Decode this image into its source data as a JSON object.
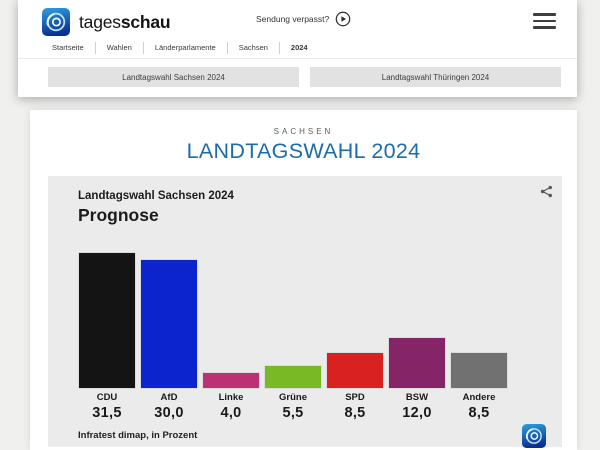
{
  "header": {
    "brand": {
      "regular": "tages",
      "bold": "schau"
    },
    "sendung_verpasst": "Sendung verpasst?",
    "breadcrumb": [
      "Startseite",
      "Wahlen",
      "Länderparlamente",
      "Sachsen",
      "2024"
    ],
    "tabs": [
      "Landtagswahl Sachsen 2024",
      "Landtagswahl Thüringen 2024"
    ]
  },
  "main": {
    "kicker": "SACHSEN",
    "title": "LANDTAGSWAHL 2024",
    "title_color": "#1d6ba8"
  },
  "chart_data": {
    "type": "bar",
    "title": "Landtagswahl Sachsen 2024",
    "subtitle": "Prognose",
    "source": "Infratest dimap, in Prozent",
    "categories": [
      "CDU",
      "AfD",
      "Linke",
      "Grüne",
      "SPD",
      "BSW",
      "Andere"
    ],
    "values": [
      31.5,
      30.0,
      4.0,
      5.5,
      8.5,
      12.0,
      8.5
    ],
    "value_labels": [
      "31,5",
      "30,0",
      "4,0",
      "5,5",
      "8,5",
      "12,0",
      "8,5"
    ],
    "colors": [
      "#141414",
      "#0b24cd",
      "#bd3075",
      "#79b925",
      "#d92121",
      "#862468",
      "#717171"
    ],
    "unit": "Prozent",
    "ylim": [
      0,
      31.5
    ],
    "grid": false,
    "legend": "none"
  }
}
